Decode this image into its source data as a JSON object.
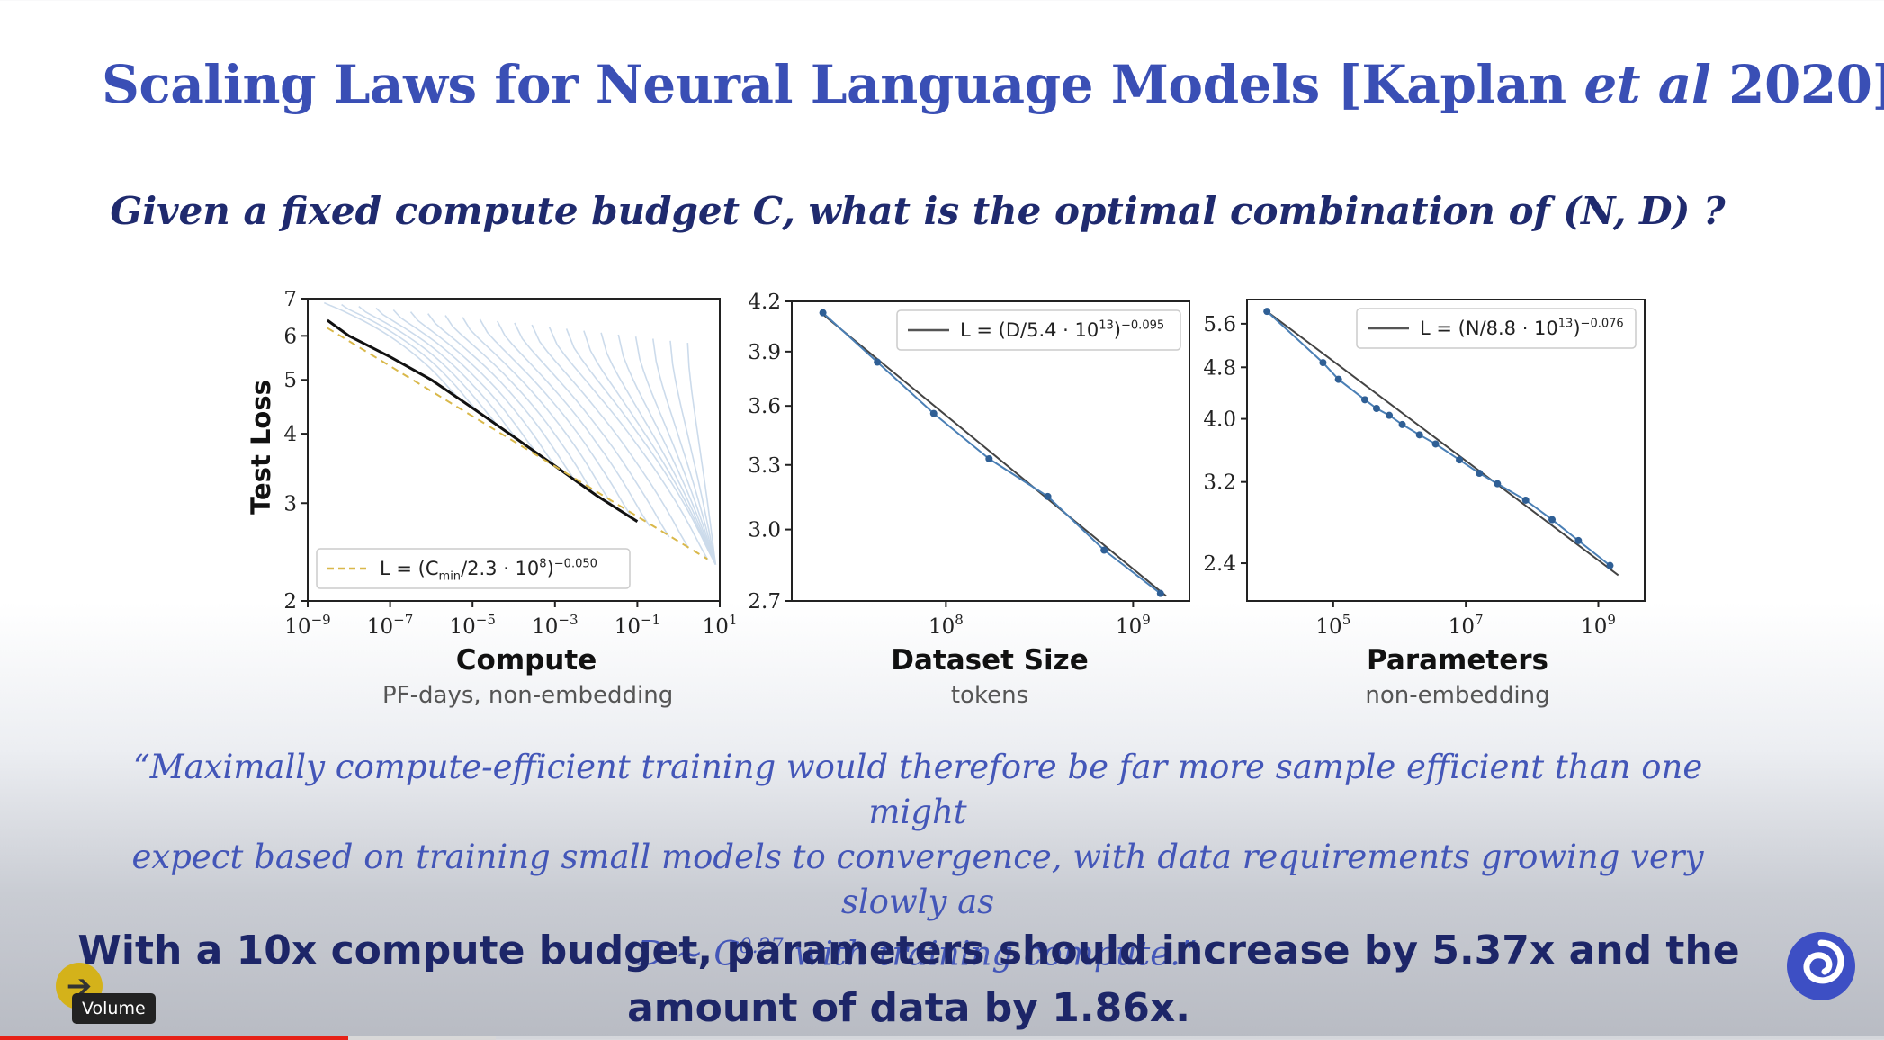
{
  "slide": {
    "title_pre": "Scaling Laws for Neural Language Models [Kaplan ",
    "title_em": "et al",
    "title_post": " 2020]",
    "question": "Given a fixed compute budget C, what is the optimal combination of (N, D) ?",
    "quote_line1": "“Maximally compute-efficient training would therefore be far more sample efficient than one might",
    "quote_line2": "expect based on training small models to convergence, with data requirements growing very slowly as",
    "quote_line3_pre": "D ~ C",
    "quote_line3_exp": "0.27",
    "quote_line3_post": " with training compute.”",
    "conclusion_line1": "With a 10x compute budget, parameters should increase by 5.37x and the",
    "conclusion_line2": "amount of data by 1.86x."
  },
  "player": {
    "tooltip": "Volume",
    "icon": "arrow-right-icon",
    "progress_fraction": 0.185,
    "buffered_fraction": 0.263,
    "progress_color": "#e62117"
  },
  "shared_ylabel": "Test Loss",
  "chart_data": [
    {
      "type": "line",
      "id": "compute",
      "xlabel": "Compute",
      "xsublabel": "PF-days, non-embedding",
      "ylabel": "Test Loss",
      "xscale": "log",
      "yscale": "log",
      "xlim": [
        1e-09,
        10
      ],
      "ylim": [
        2,
        7
      ],
      "xticks": [
        1e-09,
        1e-07,
        1e-05,
        0.001,
        0.1,
        10
      ],
      "xtick_labels": [
        [
          "10",
          "−9"
        ],
        [
          "10",
          "−7"
        ],
        [
          "10",
          "−5"
        ],
        [
          "10",
          "−3"
        ],
        [
          "10",
          "−1"
        ],
        [
          "10",
          "1"
        ]
      ],
      "yticks": [
        2,
        3,
        4,
        5,
        6,
        7
      ],
      "ytick_labels": [
        "2",
        "3",
        "4",
        "5",
        "6",
        "7"
      ],
      "legend": {
        "placement": "bottom-left",
        "style": "dashed",
        "color": "#d9b84a",
        "parts": [
          [
            "L = (C",
            "n"
          ],
          [
            "min",
            "sub"
          ],
          [
            "/2.3 · 10",
            "n"
          ],
          [
            "8",
            "sup"
          ],
          [
            ")",
            "n"
          ],
          [
            "−0.050",
            "sup"
          ]
        ]
      },
      "fit": {
        "x": [
          3e-09,
          5
        ],
        "y": [
          6.2,
          2.38
        ],
        "color": "#d9b84a"
      },
      "frontier": {
        "x": [
          3e-09,
          1e-08,
          1e-07,
          1e-06,
          1e-05,
          0.0001,
          0.001,
          0.01,
          0.1
        ],
        "y": [
          6.4,
          6.0,
          5.5,
          5.0,
          4.45,
          3.95,
          3.5,
          3.1,
          2.78
        ],
        "color": "#111111"
      },
      "curves_color": "#8fb0d4"
    },
    {
      "type": "line",
      "id": "dataset",
      "xlabel": "Dataset Size",
      "xsublabel": "tokens",
      "xscale": "log",
      "yscale": "log",
      "xlim": [
        15000000,
        2000000000
      ],
      "ylim": [
        2.7,
        4.2
      ],
      "xticks": [
        100000000,
        1000000000
      ],
      "xtick_labels": [
        [
          "10",
          "8"
        ],
        [
          "10",
          "9"
        ]
      ],
      "yticks": [
        2.7,
        3.0,
        3.3,
        3.6,
        3.9,
        4.2
      ],
      "ytick_labels": [
        "2.7",
        "3.0",
        "3.3",
        "3.6",
        "3.9",
        "4.2"
      ],
      "legend": {
        "placement": "top-right",
        "style": "solid",
        "color": "#555555",
        "parts": [
          [
            "L = (D/5.4 · 10",
            "n"
          ],
          [
            "13",
            "sup"
          ],
          [
            ")",
            "n"
          ],
          [
            "−0.095",
            "sup"
          ]
        ]
      },
      "fit": {
        "x": [
          22000000,
          1500000000
        ],
        "y": [
          4.12,
          2.72
        ],
        "color": "#444444"
      },
      "points": {
        "x": [
          22000000,
          43000000,
          86000000,
          170000000,
          350000000,
          700000000,
          1400000000
        ],
        "y": [
          4.13,
          3.84,
          3.56,
          3.33,
          3.15,
          2.91,
          2.73
        ],
        "color": "#4a7fb5"
      }
    },
    {
      "type": "line",
      "id": "parameters",
      "xlabel": "Parameters",
      "xsublabel": "non-embedding",
      "xscale": "log",
      "yscale": "log",
      "xlim": [
        5000,
        5000000000
      ],
      "ylim": [
        2.1,
        6.1
      ],
      "xticks": [
        100000,
        10000000,
        1000000000
      ],
      "xtick_labels": [
        [
          "10",
          "5"
        ],
        [
          "10",
          "7"
        ],
        [
          "10",
          "9"
        ]
      ],
      "yticks": [
        2.4,
        3.2,
        4.0,
        4.8,
        5.6
      ],
      "ytick_labels": [
        "2.4",
        "3.2",
        "4.0",
        "4.8",
        "5.6"
      ],
      "legend": {
        "placement": "top-right",
        "style": "solid",
        "color": "#555555",
        "parts": [
          [
            "L = (N/8.8 · 10",
            "n"
          ],
          [
            "13",
            "sup"
          ],
          [
            ")",
            "n"
          ],
          [
            "−0.076",
            "sup"
          ]
        ]
      },
      "fit": {
        "x": [
          10000,
          2000000000
        ],
        "y": [
          5.85,
          2.3
        ],
        "color": "#444444"
      },
      "points": {
        "x": [
          10000,
          70000,
          120000,
          300000,
          450000,
          700000,
          1100000,
          2000000,
          3500000,
          8000000,
          16000000,
          30000000,
          80000000,
          200000000,
          500000000,
          1500000000
        ],
        "y": [
          5.85,
          4.88,
          4.6,
          4.28,
          4.15,
          4.05,
          3.92,
          3.78,
          3.66,
          3.46,
          3.3,
          3.18,
          3.0,
          2.8,
          2.6,
          2.38
        ],
        "color": "#4a7fb5"
      }
    }
  ]
}
